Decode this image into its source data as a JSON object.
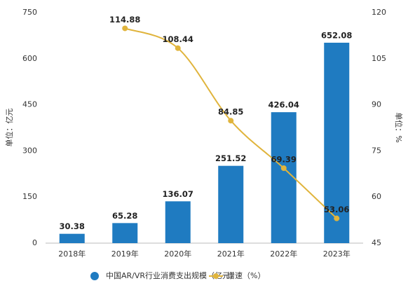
{
  "chart_data": {
    "type": "bar",
    "categories": [
      "2018年",
      "2019年",
      "2020年",
      "2021年",
      "2022年",
      "2023年"
    ],
    "series": [
      {
        "name": "中国AR/VR行业消费支出规模（亿元）",
        "color": "#1f7bc1",
        "values": [
          30.38,
          65.28,
          136.07,
          251.52,
          426.04,
          652.08
        ]
      },
      {
        "name": "增速（%）",
        "color": "#e0b43c",
        "type": "line",
        "axis": "y2",
        "values": [
          null,
          114.88,
          108.44,
          84.85,
          69.39,
          53.06
        ]
      }
    ],
    "ylabel": "单位：亿元",
    "y2label": "单位：%",
    "ylim": [
      0,
      750
    ],
    "yticks": [
      0,
      150,
      300,
      450,
      600,
      750
    ],
    "y2lim": [
      45,
      120
    ],
    "y2ticks": [
      45,
      60,
      75,
      90,
      105,
      120
    ],
    "legend": "bottom"
  }
}
